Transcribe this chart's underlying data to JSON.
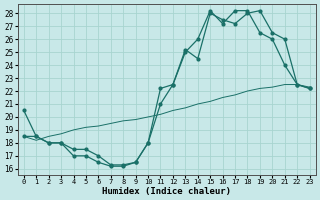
{
  "xlabel": "Humidex (Indice chaleur)",
  "bg_color": "#c8e8e8",
  "grid_color": "#a8d4d0",
  "line_color": "#1a7068",
  "xlim": [
    -0.5,
    23.5
  ],
  "ylim": [
    15.5,
    28.7
  ],
  "xticks": [
    0,
    1,
    2,
    3,
    4,
    5,
    6,
    7,
    8,
    9,
    10,
    11,
    12,
    13,
    14,
    15,
    16,
    17,
    18,
    19,
    20,
    21,
    22,
    23
  ],
  "yticks": [
    16,
    17,
    18,
    19,
    20,
    21,
    22,
    23,
    24,
    25,
    26,
    27,
    28
  ],
  "curve1_x": [
    0,
    1,
    2,
    3,
    4,
    5,
    6,
    7,
    8,
    9,
    10,
    11,
    12,
    13,
    14,
    15,
    16,
    17,
    18,
    19,
    20,
    21,
    22,
    23
  ],
  "curve1_y": [
    20.5,
    18.5,
    18.0,
    18.0,
    17.0,
    17.0,
    16.5,
    16.2,
    16.2,
    16.5,
    18.0,
    21.0,
    22.5,
    25.0,
    26.0,
    28.2,
    27.2,
    28.2,
    28.2,
    26.5,
    26.0,
    24.0,
    22.5,
    22.2
  ],
  "curve2_x": [
    0,
    1,
    2,
    3,
    4,
    5,
    6,
    7,
    8,
    9,
    10,
    11,
    12,
    13,
    14,
    15,
    16,
    17,
    18,
    19,
    20,
    21,
    22,
    23
  ],
  "curve2_y": [
    18.5,
    18.5,
    18.0,
    18.0,
    17.5,
    17.5,
    17.0,
    16.3,
    16.3,
    16.5,
    18.0,
    22.2,
    22.5,
    25.2,
    24.5,
    28.0,
    27.5,
    27.2,
    28.0,
    28.2,
    26.5,
    26.0,
    22.5,
    22.2
  ],
  "curve3_x": [
    0,
    1,
    2,
    3,
    4,
    5,
    6,
    7,
    8,
    9,
    10,
    11,
    12,
    13,
    14,
    15,
    16,
    17,
    18,
    19,
    20,
    21,
    22,
    23
  ],
  "curve3_y": [
    18.5,
    18.2,
    18.5,
    18.7,
    19.0,
    19.2,
    19.3,
    19.5,
    19.7,
    19.8,
    20.0,
    20.2,
    20.5,
    20.7,
    21.0,
    21.2,
    21.5,
    21.7,
    22.0,
    22.2,
    22.3,
    22.5,
    22.5,
    22.3
  ]
}
